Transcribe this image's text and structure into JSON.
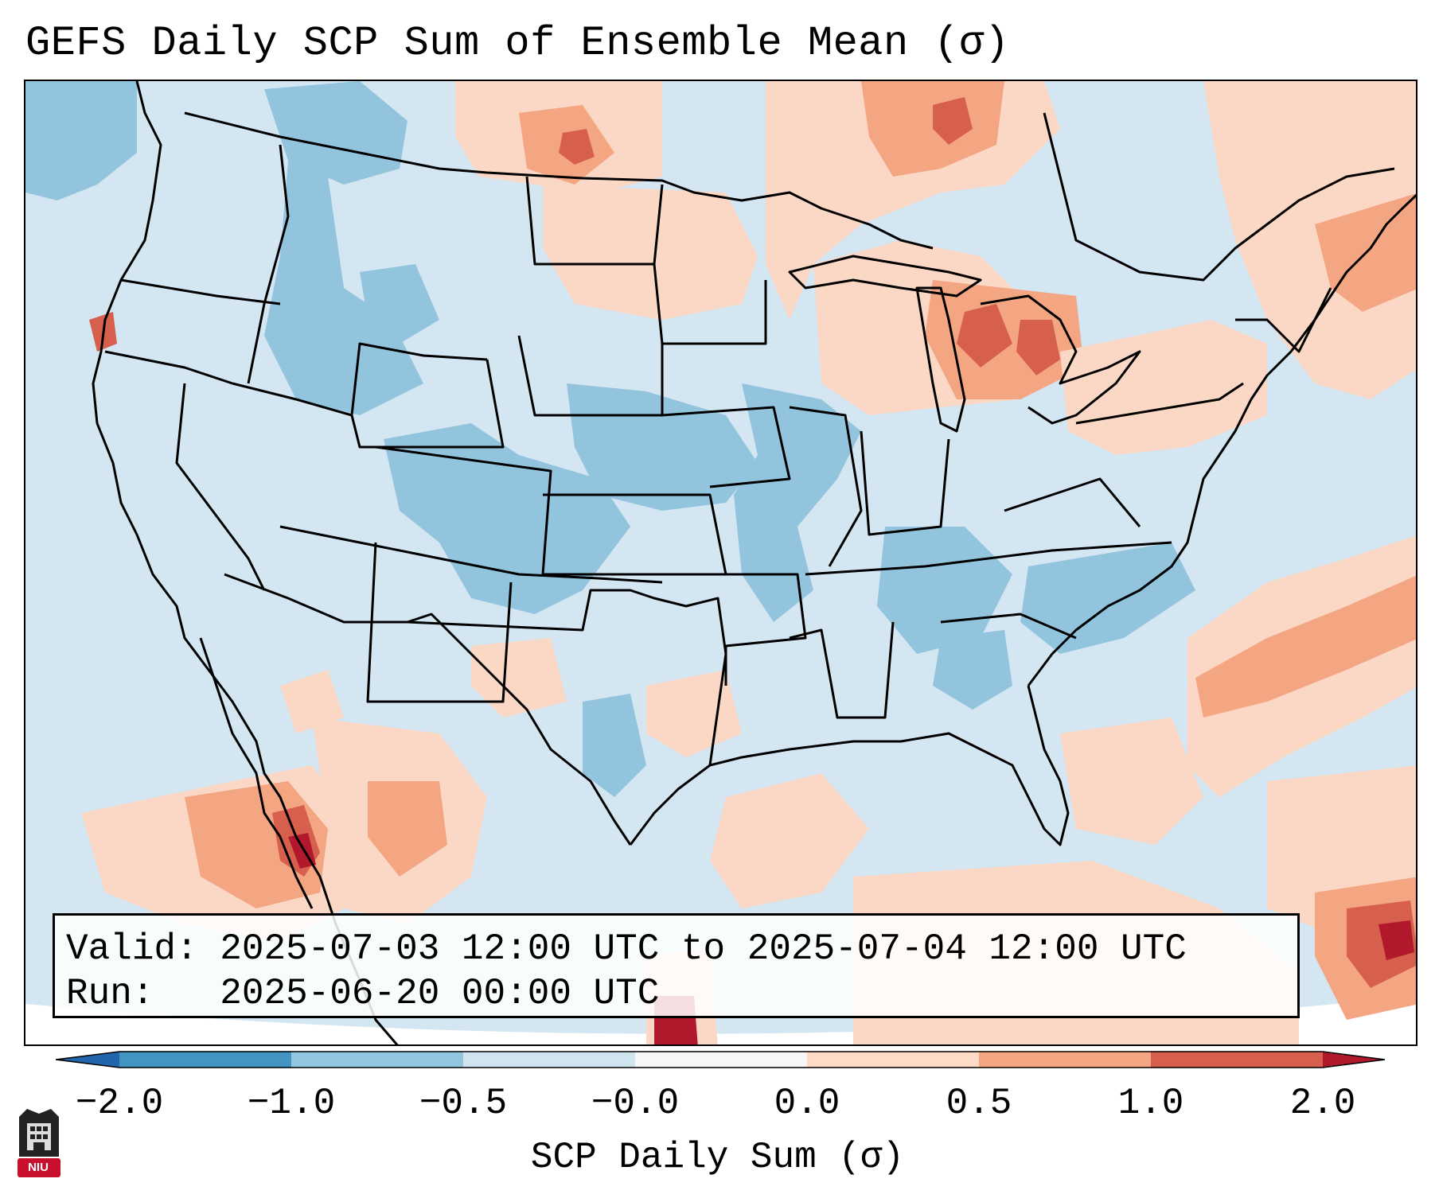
{
  "title": "GEFS Daily SCP Sum of Ensemble Mean (σ)",
  "map": {
    "projection_note": "Contiguous US, Lambert conformal",
    "colors": {
      "neutral_negative": "#d3e6f1",
      "light_blue": "#93c4de",
      "mid_blue": "#4393c3",
      "dark_blue": "#2166ac",
      "neutral_positive": "#fbd8c6",
      "light_red": "#f4a582",
      "mid_red": "#d6604d",
      "dark_red": "#b2182b",
      "outside": "#ffffff"
    }
  },
  "info": {
    "valid_label": "Valid:",
    "valid_value": "2025-07-03 12:00 UTC to 2025-07-04 12:00 UTC",
    "run_label": "Run:",
    "run_value": "2025-06-20 00:00 UTC"
  },
  "colorbar": {
    "label": "SCP Daily Sum (σ)",
    "ticks": [
      "−2.0",
      "−1.0",
      "−0.5",
      "−0.0",
      "0.0",
      "0.5",
      "1.0",
      "2.0"
    ],
    "bins": [
      {
        "color": "#2166ac"
      },
      {
        "color": "#4393c3"
      },
      {
        "color": "#92c5de"
      },
      {
        "color": "#d1e5f0"
      },
      {
        "color": "#f7f7f7"
      },
      {
        "color": "#fddbc7"
      },
      {
        "color": "#f4a582"
      },
      {
        "color": "#d6604d"
      },
      {
        "color": "#b2182b"
      }
    ]
  },
  "logo": {
    "text": "NIU"
  }
}
